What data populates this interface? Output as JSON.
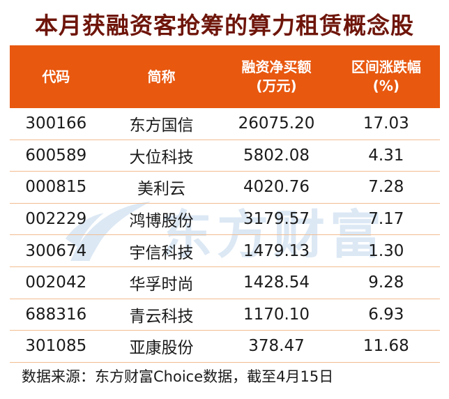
{
  "title": "本月获融资客抢筹的算力租赁概念股",
  "table": {
    "columns": [
      {
        "label": "代码",
        "sub": ""
      },
      {
        "label": "简称",
        "sub": ""
      },
      {
        "label": "融资净买额",
        "sub": "(万元)"
      },
      {
        "label": "区间涨跌幅",
        "sub": "(%)"
      }
    ],
    "rows": [
      [
        "300166",
        "东方国信",
        "26075.20",
        "17.03"
      ],
      [
        "600589",
        "大位科技",
        "5802.08",
        "4.31"
      ],
      [
        "000815",
        "美利云",
        "4020.76",
        "7.28"
      ],
      [
        "002229",
        "鸿博股份",
        "3179.57",
        "7.17"
      ],
      [
        "300674",
        "宇信科技",
        "1479.13",
        "1.30"
      ],
      [
        "002042",
        "华孚时尚",
        "1428.54",
        "9.28"
      ],
      [
        "688316",
        "青云科技",
        "1170.10",
        "6.93"
      ],
      [
        "301085",
        "亚康股份",
        "378.47",
        "11.68"
      ]
    ]
  },
  "footer": {
    "source_note": "数据来源：东方财富Choice数据，截至4月15日"
  },
  "watermark": {
    "brand": "东方财富"
  },
  "colors": {
    "header_bg": "#e8580f",
    "divider": "#f2bc90",
    "title_color": "#6e150a",
    "text_color": "#1a1a1a",
    "watermark_color": "#dce8f4"
  },
  "chart_data": {
    "type": "table",
    "title": "本月获融资客抢筹的算力租赁概念股",
    "columns": [
      "代码",
      "简称",
      "融资净买额(万元)",
      "区间涨跌幅(%)"
    ],
    "rows": [
      [
        "300166",
        "东方国信",
        26075.2,
        17.03
      ],
      [
        "600589",
        "大位科技",
        5802.08,
        4.31
      ],
      [
        "000815",
        "美利云",
        4020.76,
        7.28
      ],
      [
        "002229",
        "鸿博股份",
        3179.57,
        7.17
      ],
      [
        "300674",
        "宇信科技",
        1479.13,
        1.3
      ],
      [
        "002042",
        "华孚时尚",
        1428.54,
        9.28
      ],
      [
        "688316",
        "青云科技",
        1170.1,
        6.93
      ],
      [
        "301085",
        "亚康股份",
        378.47,
        11.68
      ]
    ],
    "source": "数据来源：东方财富Choice数据，截至4月15日",
    "sorted_by": "融资净买额(万元) 降序"
  }
}
